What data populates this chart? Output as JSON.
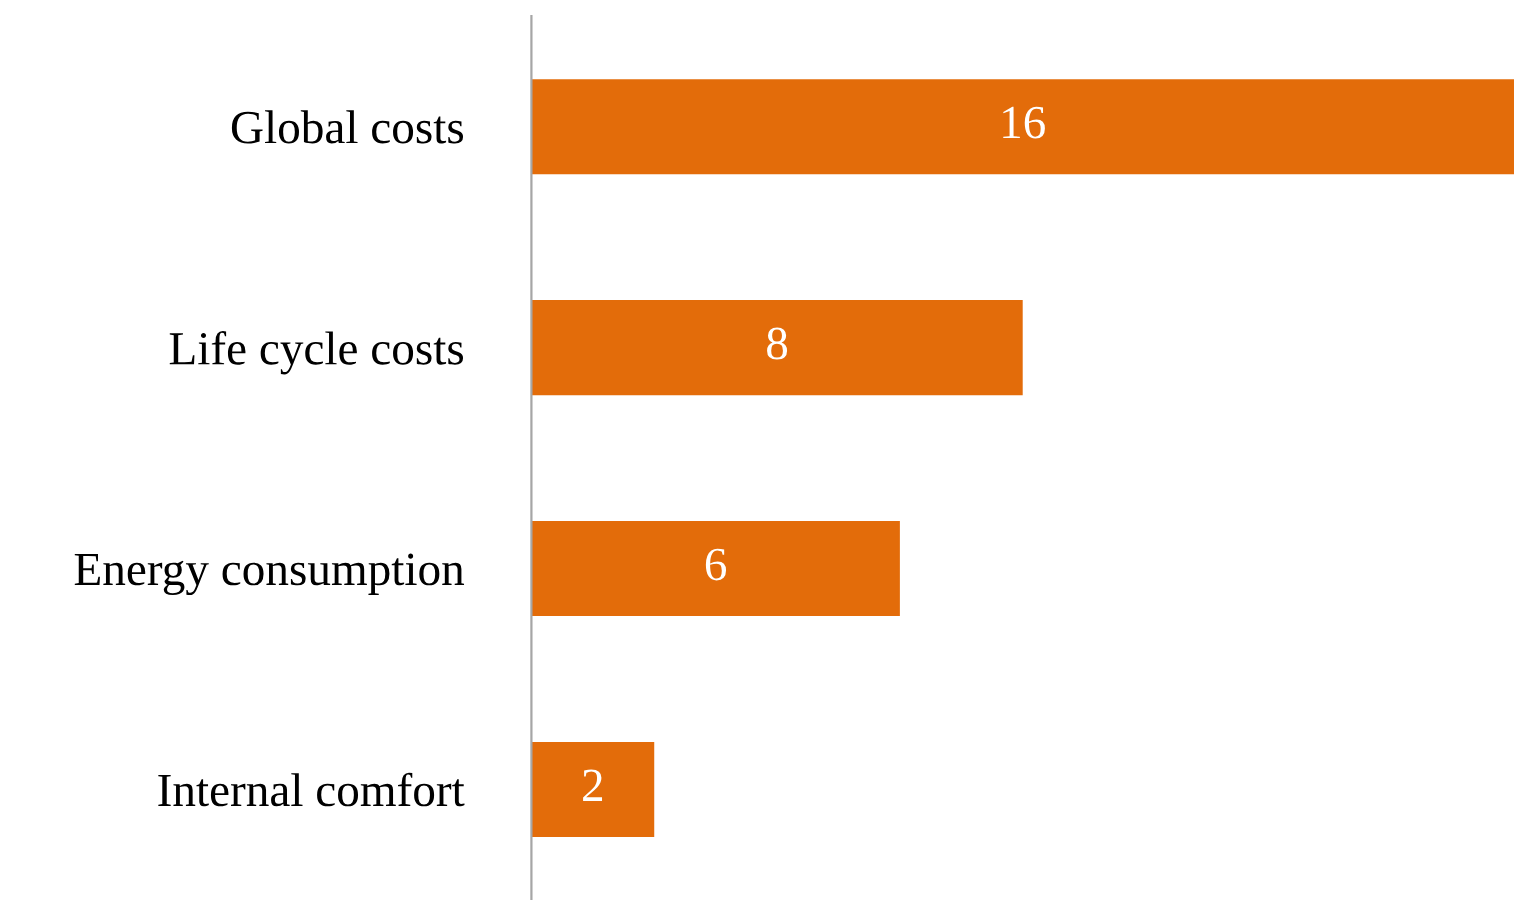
{
  "chart_data": {
    "type": "bar",
    "orientation": "horizontal",
    "categories": [
      "Global costs",
      "Life cycle costs",
      "Energy consumption",
      "Internal comfort"
    ],
    "values": [
      16,
      8,
      6,
      2
    ],
    "color": "#e36c0a",
    "xlim": [
      0,
      16
    ],
    "data_labels": true,
    "tick_labels": "y",
    "grid": false,
    "legend": false
  }
}
